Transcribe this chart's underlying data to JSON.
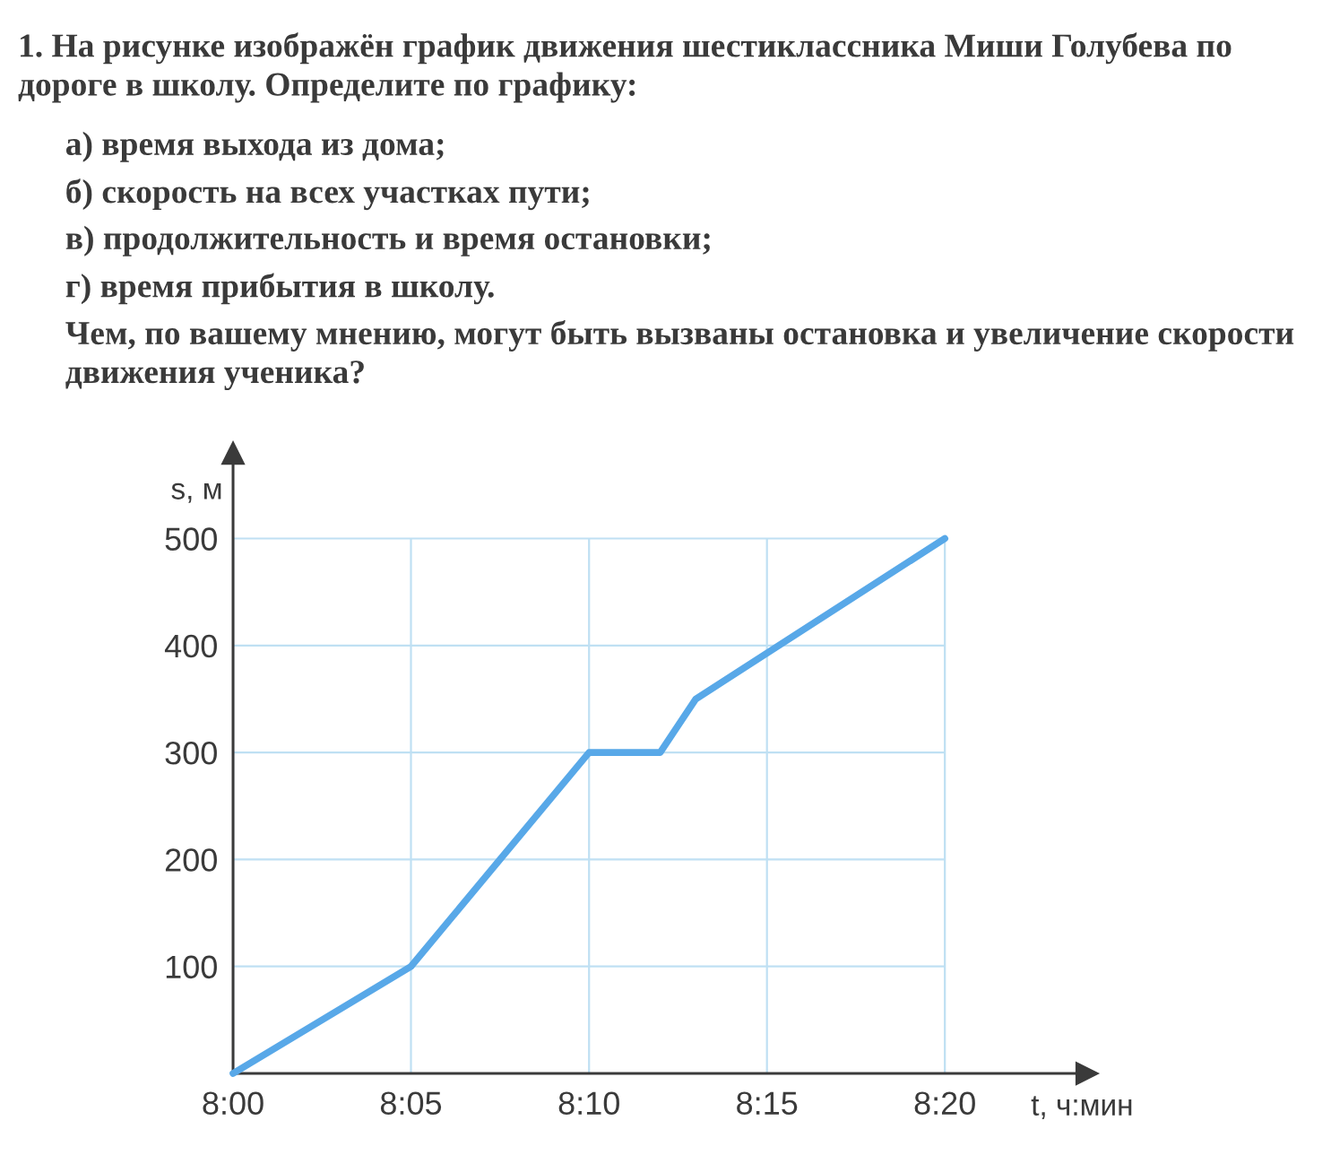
{
  "chart_data": {
    "type": "line",
    "title": "1. На рисунке изображён график движения шестиклассника Миши Голубева по дороге в школу. Определите по графику:",
    "annotations": [
      "а) время выхода из дома;",
      "б) скорость на всех участках пути;",
      "в) продолжительность и время остановки;",
      "г) время прибытия в школу.",
      "Чем, по вашему мнению, могут быть вызваны остановка и увеличение скорости движения ученика?"
    ],
    "xlabel": "t, ч:мин",
    "ylabel": "s, м",
    "x": [
      8,
      8.0833,
      8.1667,
      8.2,
      8.2167,
      8.3333
    ],
    "series": [
      {
        "color": "#58a8e8",
        "values": [
          0,
          100,
          300,
          300,
          350,
          500
        ]
      }
    ],
    "xlim": [
      8,
      8.4
    ],
    "ylim": [
      0,
      580
    ],
    "xticks": [
      {
        "value": 8,
        "label": "8:00"
      },
      {
        "value": 8.0833,
        "label": "8:05"
      },
      {
        "value": 8.1667,
        "label": "8:10"
      },
      {
        "value": 8.25,
        "label": "8:15"
      },
      {
        "value": 8.3333,
        "label": "8:20"
      }
    ],
    "yticks": [
      100,
      200,
      300,
      400,
      500
    ],
    "grid": true,
    "marker": "none",
    "line_style": "solid"
  }
}
